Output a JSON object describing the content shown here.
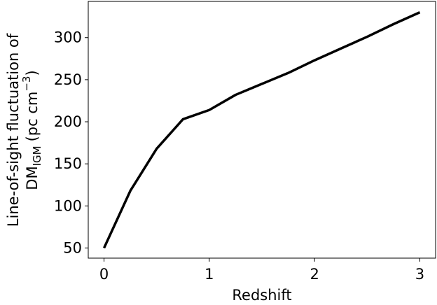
{
  "chart_data": {
    "type": "line",
    "x_label": "Redshift",
    "y_label": {
      "line1": "Line-of-sight fluctuation of",
      "line2": [
        "DM",
        "IGM",
        "(pc cm",
        "−3",
        ")"
      ]
    },
    "x": [
      0,
      0.25,
      0.5,
      0.75,
      1.0,
      1.25,
      1.5,
      1.75,
      2.0,
      2.25,
      2.5,
      2.75,
      3.0
    ],
    "series": [
      {
        "color": "#000000",
        "values": [
          50,
          118,
          168,
          203,
          214,
          232,
          245,
          258,
          273,
          287,
          301,
          316,
          330
        ]
      }
    ],
    "xlim": [
      -0.15,
      3.15
    ],
    "xticks": [
      0,
      1,
      2,
      3
    ],
    "ylim": [
      38,
      343
    ],
    "yticks": [
      50,
      100,
      150,
      200,
      250,
      300
    ]
  }
}
